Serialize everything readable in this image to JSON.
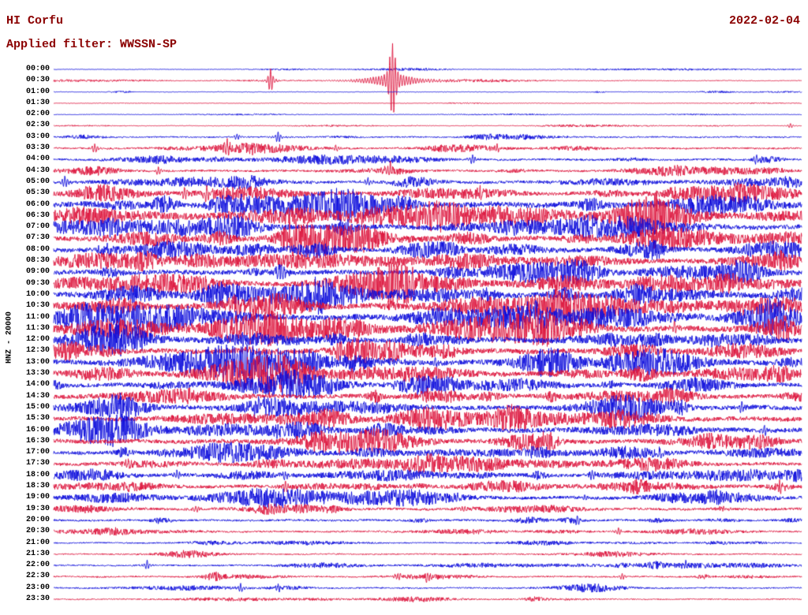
{
  "header": {
    "station": "HI Corfu",
    "date": "2022-02-04",
    "filter_label": "Applied filter: WWSSN-SP"
  },
  "axis": {
    "left_label": "HNZ - 20000"
  },
  "chart_data": {
    "type": "line",
    "subtype": "helicorder-seismogram",
    "title": "HI Corfu",
    "date": "2022-02-04",
    "filter": "WWSSN-SP",
    "channel_scale": "HNZ - 20000",
    "minutes_per_line": 30,
    "x_range_minutes": [
      0,
      30
    ],
    "grid": false,
    "legend": false,
    "colors": {
      "blue": "#0b0bdb",
      "red": "#dc143c"
    },
    "traces": [
      {
        "label": "00:00",
        "color": "blue",
        "noise": 0.3
      },
      {
        "label": "00:30",
        "color": "red",
        "noise": 0.45,
        "events": [
          {
            "x": 0.29,
            "amp": 15
          },
          {
            "x": 0.453,
            "amp": 46
          }
        ]
      },
      {
        "label": "01:00",
        "color": "blue",
        "noise": 0.3
      },
      {
        "label": "01:30",
        "color": "red",
        "noise": 0.3
      },
      {
        "label": "02:00",
        "color": "blue",
        "noise": 0.3
      },
      {
        "label": "02:30",
        "color": "red",
        "noise": 0.32,
        "events": [
          {
            "x": 0.985,
            "amp": 3
          }
        ]
      },
      {
        "label": "03:00",
        "color": "blue",
        "noise": 0.85,
        "events": [
          {
            "x": 0.245,
            "amp": 4
          },
          {
            "x": 0.3,
            "amp": 7
          }
        ]
      },
      {
        "label": "03:30",
        "color": "red",
        "noise": 1.05,
        "events": [
          {
            "x": 0.055,
            "amp": 6
          },
          {
            "x": 0.232,
            "amp": 7
          },
          {
            "x": 0.268,
            "amp": 4
          },
          {
            "x": 0.377,
            "amp": 4
          },
          {
            "x": 0.593,
            "amp": 4
          }
        ]
      },
      {
        "label": "04:00",
        "color": "blue",
        "noise": 1.2,
        "events": [
          {
            "x": 0.56,
            "amp": 6
          },
          {
            "x": 0.94,
            "amp": 5
          }
        ]
      },
      {
        "label": "04:30",
        "color": "red",
        "noise": 1.3,
        "events": [
          {
            "x": 0.14,
            "amp": 5
          },
          {
            "x": 0.45,
            "amp": 10
          },
          {
            "x": 0.83,
            "amp": 4
          }
        ]
      },
      {
        "label": "05:00",
        "color": "blue",
        "noise": 1.7,
        "events": [
          {
            "x": 0.015,
            "amp": 7
          },
          {
            "x": 0.42,
            "amp": 5
          }
        ]
      },
      {
        "label": "05:30",
        "color": "red",
        "noise": 2.1,
        "events": [
          {
            "x": 0.175,
            "amp": 8
          },
          {
            "x": 0.205,
            "amp": 9
          },
          {
            "x": 0.57,
            "amp": 5
          },
          {
            "x": 0.88,
            "amp": 5
          }
        ]
      },
      {
        "label": "06:00",
        "color": "blue",
        "noise": 3.4
      },
      {
        "label": "06:30",
        "color": "red",
        "noise": 3.0
      },
      {
        "label": "07:00",
        "color": "blue",
        "noise": 2.8
      },
      {
        "label": "07:30",
        "color": "red",
        "noise": 2.8
      },
      {
        "label": "08:00",
        "color": "blue",
        "noise": 2.7,
        "events": [
          {
            "x": 0.93,
            "amp": 6
          }
        ]
      },
      {
        "label": "08:30",
        "color": "red",
        "noise": 2.6
      },
      {
        "label": "09:00",
        "color": "blue",
        "noise": 2.8
      },
      {
        "label": "09:30",
        "color": "red",
        "noise": 2.9,
        "events": [
          {
            "x": 0.2,
            "amp": 6
          }
        ]
      },
      {
        "label": "10:00",
        "color": "blue",
        "noise": 3.2
      },
      {
        "label": "10:30",
        "color": "red",
        "noise": 3.2,
        "events": [
          {
            "x": 0.92,
            "amp": 7
          }
        ]
      },
      {
        "label": "11:00",
        "color": "blue",
        "noise": 3.5
      },
      {
        "label": "11:30",
        "color": "red",
        "noise": 3.4,
        "events": [
          {
            "x": 0.83,
            "amp": 7
          }
        ]
      },
      {
        "label": "12:00",
        "color": "blue",
        "noise": 3.0
      },
      {
        "label": "12:30",
        "color": "red",
        "noise": 3.0,
        "events": [
          {
            "x": 0.8,
            "amp": 6
          }
        ]
      },
      {
        "label": "13:00",
        "color": "blue",
        "noise": 3.0,
        "events": [
          {
            "x": 0.3,
            "amp": 6
          },
          {
            "x": 0.51,
            "amp": 6
          }
        ]
      },
      {
        "label": "13:30",
        "color": "red",
        "noise": 2.8,
        "events": [
          {
            "x": 0.29,
            "amp": 6
          }
        ]
      },
      {
        "label": "14:00",
        "color": "blue",
        "noise": 2.5
      },
      {
        "label": "14:30",
        "color": "red",
        "noise": 2.5,
        "events": [
          {
            "x": 0.5,
            "amp": 5
          }
        ]
      },
      {
        "label": "15:00",
        "color": "blue",
        "noise": 2.7,
        "events": [
          {
            "x": 0.27,
            "amp": 7
          },
          {
            "x": 0.92,
            "amp": 6
          }
        ]
      },
      {
        "label": "15:30",
        "color": "red",
        "noise": 2.7
      },
      {
        "label": "16:00",
        "color": "blue",
        "noise": 2.7,
        "events": [
          {
            "x": 0.3,
            "amp": 6
          },
          {
            "x": 0.95,
            "amp": 6
          }
        ]
      },
      {
        "label": "16:30",
        "color": "red",
        "noise": 2.5,
        "events": [
          {
            "x": 0.38,
            "amp": 5
          }
        ]
      },
      {
        "label": "17:00",
        "color": "blue",
        "noise": 2.2,
        "events": [
          {
            "x": 0.81,
            "amp": 5
          }
        ]
      },
      {
        "label": "17:30",
        "color": "red",
        "noise": 2.0,
        "events": [
          {
            "x": 0.1,
            "amp": 5
          }
        ]
      },
      {
        "label": "18:00",
        "color": "blue",
        "noise": 2.0,
        "events": [
          {
            "x": 0.165,
            "amp": 6
          },
          {
            "x": 0.31,
            "amp": 5
          },
          {
            "x": 0.72,
            "amp": 5
          }
        ]
      },
      {
        "label": "18:30",
        "color": "red",
        "noise": 2.0,
        "events": [
          {
            "x": 0.31,
            "amp": 7
          },
          {
            "x": 0.97,
            "amp": 5
          }
        ]
      },
      {
        "label": "19:00",
        "color": "blue",
        "noise": 1.9,
        "events": [
          {
            "x": 0.33,
            "amp": 6
          },
          {
            "x": 0.54,
            "amp": 5
          },
          {
            "x": 0.71,
            "amp": 5
          }
        ]
      },
      {
        "label": "19:30",
        "color": "red",
        "noise": 1.5,
        "events": [
          {
            "x": 0.19,
            "amp": 4
          },
          {
            "x": 0.55,
            "amp": 4
          }
        ]
      },
      {
        "label": "20:00",
        "color": "blue",
        "noise": 1.2,
        "events": [
          {
            "x": 0.7,
            "amp": 4
          }
        ]
      },
      {
        "label": "20:30",
        "color": "red",
        "noise": 1.0,
        "events": [
          {
            "x": 0.755,
            "amp": 5
          }
        ]
      },
      {
        "label": "21:00",
        "color": "blue",
        "noise": 0.8
      },
      {
        "label": "21:30",
        "color": "red",
        "noise": 0.8
      },
      {
        "label": "22:00",
        "color": "blue",
        "noise": 0.9,
        "events": [
          {
            "x": 0.125,
            "amp": 6
          },
          {
            "x": 0.845,
            "amp": 4
          }
        ]
      },
      {
        "label": "22:30",
        "color": "red",
        "noise": 0.9,
        "events": [
          {
            "x": 0.46,
            "amp": 5
          },
          {
            "x": 0.5,
            "amp": 6
          },
          {
            "x": 0.76,
            "amp": 4
          }
        ]
      },
      {
        "label": "23:00",
        "color": "blue",
        "noise": 0.85,
        "events": [
          {
            "x": 0.25,
            "amp": 5
          },
          {
            "x": 0.3,
            "amp": 4
          }
        ]
      },
      {
        "label": "23:30",
        "color": "red",
        "noise": 0.7
      }
    ]
  }
}
